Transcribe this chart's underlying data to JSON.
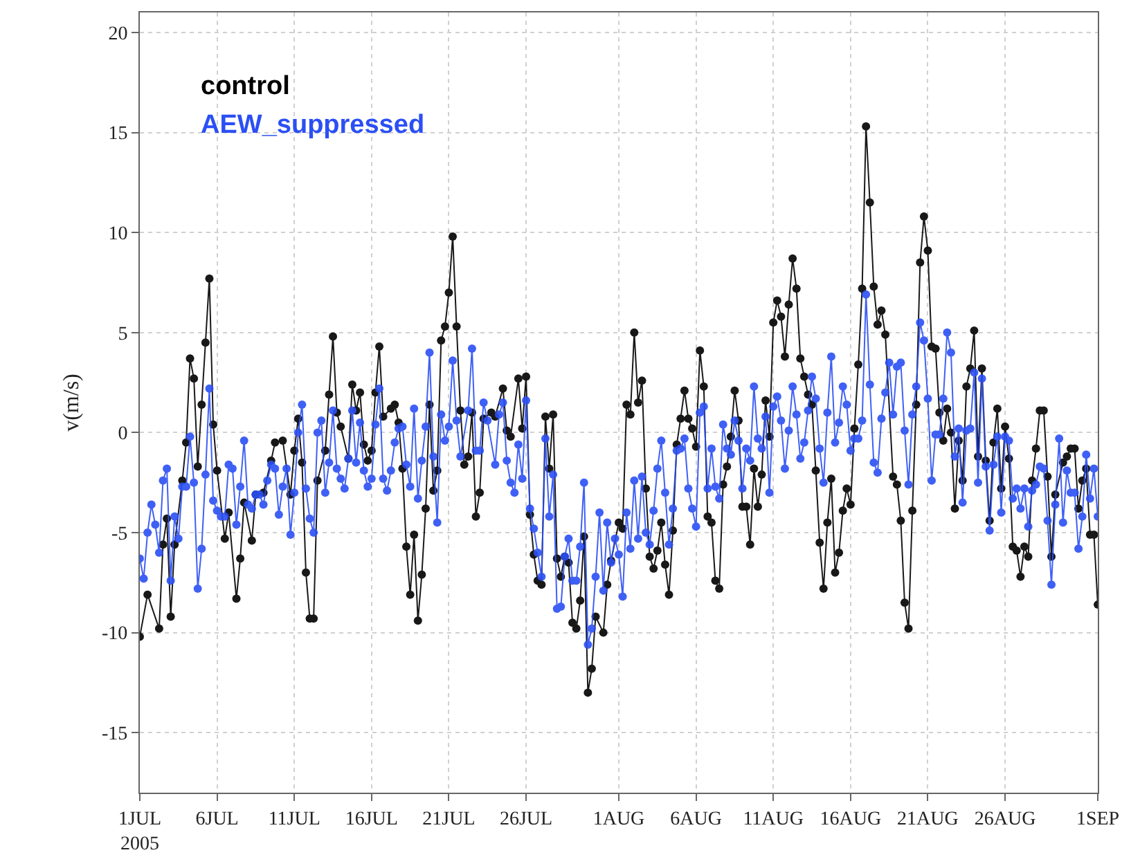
{
  "chart_data": {
    "type": "line",
    "ylabel": "v(m/s)",
    "marker": "circle",
    "line_style": "solid",
    "grid": true,
    "legend": "top left",
    "xlim": [
      "2005-07-01",
      "2005-09-01"
    ],
    "ylim": [
      -18,
      21
    ],
    "yticks": [
      -15,
      -10,
      -5,
      0,
      5,
      10,
      15,
      20
    ],
    "xticks": [
      {
        "value": "2005-07-01",
        "label": "1JUL\n2005"
      },
      {
        "value": "2005-07-06",
        "label": "6JUL"
      },
      {
        "value": "2005-07-11",
        "label": "11JUL"
      },
      {
        "value": "2005-07-16",
        "label": "16JUL"
      },
      {
        "value": "2005-07-21",
        "label": "21JUL"
      },
      {
        "value": "2005-07-26",
        "label": "26JUL"
      },
      {
        "value": "2005-08-01",
        "label": "1AUG"
      },
      {
        "value": "2005-08-06",
        "label": "6AUG"
      },
      {
        "value": "2005-08-11",
        "label": "11AUG"
      },
      {
        "value": "2005-08-16",
        "label": "16AUG"
      },
      {
        "value": "2005-08-21",
        "label": "21AUG"
      },
      {
        "value": "2005-08-26",
        "label": "26AUG"
      },
      {
        "value": "2005-09-01",
        "label": "1SEP"
      }
    ],
    "series": [
      {
        "name": "control",
        "color": "#000000",
        "x": [
          "2005-07-01T00:00",
          "2005-07-01T12:00",
          "2005-07-02T06:00",
          "2005-07-02T12:00",
          "2005-07-02T18:00",
          "2005-07-03T00:00",
          "2005-07-03T06:00",
          "2005-07-03T18:00",
          "2005-07-04T00:00",
          "2005-07-04T06:00",
          "2005-07-04T12:00",
          "2005-07-04T18:00",
          "2005-07-05T00:00",
          "2005-07-05T06:00",
          "2005-07-05T12:00",
          "2005-07-05T18:00",
          "2005-07-06T00:00",
          "2005-07-06T12:00",
          "2005-07-06T18:00",
          "2005-07-07T06:00",
          "2005-07-07T12:00",
          "2005-07-07T18:00",
          "2005-07-08T06:00",
          "2005-07-08T12:00",
          "2005-07-09T00:00",
          "2005-07-09T12:00",
          "2005-07-09T18:00",
          "2005-07-10T06:00",
          "2005-07-10T18:00",
          "2005-07-11T00:00",
          "2005-07-11T06:00",
          "2005-07-11T12:00",
          "2005-07-11T18:00",
          "2005-07-12T00:00",
          "2005-07-12T06:00",
          "2005-07-12T12:00",
          "2005-07-13T00:00",
          "2005-07-13T06:00",
          "2005-07-13T12:00",
          "2005-07-13T18:00",
          "2005-07-14T00:00",
          "2005-07-14T12:00",
          "2005-07-14T18:00",
          "2005-07-15T00:00",
          "2005-07-15T06:00",
          "2005-07-15T12:00",
          "2005-07-15T18:00",
          "2005-07-16T00:00",
          "2005-07-16T06:00",
          "2005-07-16T12:00",
          "2005-07-16T18:00",
          "2005-07-17T06:00",
          "2005-07-17T12:00",
          "2005-07-17T18:00",
          "2005-07-18T00:00",
          "2005-07-18T06:00",
          "2005-07-18T12:00",
          "2005-07-18T18:00",
          "2005-07-19T00:00",
          "2005-07-19T06:00",
          "2005-07-19T12:00",
          "2005-07-19T18:00",
          "2005-07-20T00:00",
          "2005-07-20T06:00",
          "2005-07-20T12:00",
          "2005-07-20T18:00",
          "2005-07-21T00:00",
          "2005-07-21T06:00",
          "2005-07-21T12:00",
          "2005-07-21T18:00",
          "2005-07-22T00:00",
          "2005-07-22T06:00",
          "2005-07-22T12:00",
          "2005-07-22T18:00",
          "2005-07-23T00:00",
          "2005-07-23T06:00",
          "2005-07-23T18:00",
          "2005-07-24T00:00",
          "2005-07-24T12:00",
          "2005-07-24T18:00",
          "2005-07-25T00:00",
          "2005-07-25T12:00",
          "2005-07-25T18:00",
          "2005-07-26T00:00",
          "2005-07-26T06:00",
          "2005-07-26T12:00",
          "2005-07-26T18:00",
          "2005-07-27T00:00",
          "2005-07-27T06:00",
          "2005-07-27T12:00",
          "2005-07-27T18:00",
          "2005-07-28T00:00",
          "2005-07-28T06:00",
          "2005-07-28T12:00",
          "2005-07-28T18:00",
          "2005-07-29T00:00",
          "2005-07-29T06:00",
          "2005-07-29T12:00",
          "2005-07-29T18:00",
          "2005-07-30T00:00",
          "2005-07-30T06:00",
          "2005-07-30T12:00",
          "2005-07-31T00:00",
          "2005-07-31T06:00",
          "2005-07-31T12:00",
          "2005-08-01T00:00",
          "2005-08-01T06:00",
          "2005-08-01T12:00",
          "2005-08-01T18:00",
          "2005-08-02T00:00",
          "2005-08-02T06:00",
          "2005-08-02T12:00",
          "2005-08-02T18:00",
          "2005-08-03T00:00",
          "2005-08-03T06:00",
          "2005-08-03T12:00",
          "2005-08-03T18:00",
          "2005-08-04T00:00",
          "2005-08-04T06:00",
          "2005-08-04T12:00",
          "2005-08-04T18:00",
          "2005-08-05T00:00",
          "2005-08-05T06:00",
          "2005-08-05T12:00",
          "2005-08-05T18:00",
          "2005-08-06T00:00",
          "2005-08-06T06:00",
          "2005-08-06T12:00",
          "2005-08-06T18:00",
          "2005-08-07T00:00",
          "2005-08-07T06:00",
          "2005-08-07T12:00",
          "2005-08-07T18:00",
          "2005-08-08T00:00",
          "2005-08-08T06:00",
          "2005-08-08T12:00",
          "2005-08-08T18:00",
          "2005-08-09T00:00",
          "2005-08-09T06:00",
          "2005-08-09T12:00",
          "2005-08-09T18:00",
          "2005-08-10T00:00",
          "2005-08-10T06:00",
          "2005-08-10T12:00",
          "2005-08-10T18:00",
          "2005-08-11T00:00",
          "2005-08-11T06:00",
          "2005-08-11T12:00",
          "2005-08-11T18:00",
          "2005-08-12T00:00",
          "2005-08-12T06:00",
          "2005-08-12T12:00",
          "2005-08-12T18:00",
          "2005-08-13T00:00",
          "2005-08-13T06:00",
          "2005-08-13T12:00",
          "2005-08-13T18:00",
          "2005-08-14T00:00",
          "2005-08-14T06:00",
          "2005-08-14T12:00",
          "2005-08-14T18:00",
          "2005-08-15T00:00",
          "2005-08-15T06:00",
          "2005-08-15T12:00",
          "2005-08-15T18:00",
          "2005-08-16T00:00",
          "2005-08-16T06:00",
          "2005-08-16T12:00",
          "2005-08-16T18:00",
          "2005-08-17T00:00",
          "2005-08-17T06:00",
          "2005-08-17T12:00",
          "2005-08-17T18:00",
          "2005-08-18T00:00",
          "2005-08-18T06:00",
          "2005-08-18T18:00",
          "2005-08-19T00:00",
          "2005-08-19T06:00",
          "2005-08-19T12:00",
          "2005-08-19T18:00",
          "2005-08-20T00:00",
          "2005-08-20T06:00",
          "2005-08-20T12:00",
          "2005-08-20T18:00",
          "2005-08-21T00:00",
          "2005-08-21T06:00",
          "2005-08-21T12:00",
          "2005-08-21T18:00",
          "2005-08-22T00:00",
          "2005-08-22T06:00",
          "2005-08-22T12:00",
          "2005-08-22T18:00",
          "2005-08-23T00:00",
          "2005-08-23T06:00",
          "2005-08-23T12:00",
          "2005-08-23T18:00",
          "2005-08-24T00:00",
          "2005-08-24T06:00",
          "2005-08-24T12:00",
          "2005-08-24T18:00",
          "2005-08-25T00:00",
          "2005-08-25T06:00",
          "2005-08-25T12:00",
          "2005-08-25T18:00",
          "2005-08-26T00:00",
          "2005-08-26T06:00",
          "2005-08-26T12:00",
          "2005-08-26T18:00",
          "2005-08-27T00:00",
          "2005-08-27T06:00",
          "2005-08-27T12:00",
          "2005-08-27T18:00",
          "2005-08-28T00:00",
          "2005-08-28T06:00",
          "2005-08-28T12:00",
          "2005-08-28T18:00",
          "2005-08-29T00:00",
          "2005-08-29T06:00",
          "2005-08-29T18:00",
          "2005-08-30T00:00",
          "2005-08-30T06:00",
          "2005-08-30T12:00",
          "2005-08-30T18:00",
          "2005-08-31T00:00",
          "2005-08-31T06:00",
          "2005-08-31T12:00",
          "2005-08-31T18:00",
          "2005-09-01T00:00"
        ],
        "values": [
          -10.2,
          -8.1,
          -9.8,
          -5.6,
          -4.3,
          -9.2,
          -5.6,
          -2.4,
          -0.5,
          3.7,
          2.7,
          -1.7,
          1.4,
          4.5,
          7.7,
          0.4,
          -1.9,
          -5.3,
          -4.0,
          -8.3,
          -6.3,
          -3.5,
          -5.4,
          -3.1,
          -3.0,
          -1.4,
          -0.5,
          -0.4,
          -3.1,
          -0.9,
          0.7,
          -1.5,
          -7.0,
          -9.3,
          -9.3,
          -2.4,
          -0.9,
          1.9,
          4.8,
          1.0,
          0.3,
          -1.3,
          2.4,
          1.1,
          2.0,
          -0.6,
          -1.4,
          -0.9,
          2.0,
          4.3,
          0.8,
          1.2,
          1.4,
          0.5,
          -1.8,
          -5.7,
          -8.1,
          -5.1,
          -9.4,
          -7.1,
          -3.8,
          1.4,
          -2.9,
          -1.9,
          4.6,
          5.3,
          7.0,
          9.8,
          5.3,
          1.1,
          -1.6,
          -1.2,
          1.0,
          -4.2,
          -3.0,
          0.7,
          1.0,
          0.8,
          2.2,
          0.1,
          -0.2,
          2.7,
          0.2,
          2.8,
          -4.1,
          -6.1,
          -7.4,
          -7.6,
          0.8,
          -1.8,
          0.9,
          -6.3,
          -7.2,
          -6.2,
          -6.5,
          -9.5,
          -9.8,
          -8.4,
          -5.2,
          -13.0,
          -11.8,
          -9.2,
          -10.0,
          -7.6,
          -6.4,
          -4.5,
          -4.8,
          1.4,
          0.9,
          5.0,
          1.5,
          2.6,
          -2.8,
          -6.2,
          -6.8,
          -5.9,
          -4.5,
          -6.6,
          -8.1,
          -4.9,
          -0.6,
          0.7,
          2.1,
          0.7,
          0.2,
          -0.7,
          4.1,
          2.3,
          -4.2,
          -4.5,
          -7.4,
          -7.8,
          -2.6,
          -1.7,
          -0.2,
          2.1,
          0.6,
          -3.7,
          -3.7,
          -5.6,
          -1.8,
          -3.7,
          -2.1,
          1.6,
          -0.2,
          5.5,
          6.6,
          5.8,
          3.8,
          6.4,
          8.7,
          7.2,
          3.7,
          2.8,
          1.9,
          1.4,
          -1.9,
          -5.5,
          -7.8,
          -4.5,
          -2.3,
          -7.0,
          -6.0,
          -3.9,
          -2.8,
          -3.6,
          0.2,
          3.4,
          7.2,
          15.3,
          11.5,
          7.3,
          5.4,
          6.1,
          4.9,
          -2.2,
          -2.6,
          -4.4,
          -8.5,
          -9.8,
          -3.9,
          1.4,
          8.5,
          10.8,
          9.1,
          4.3,
          4.2,
          1.0,
          -0.4,
          1.2,
          0.0,
          -3.8,
          -0.4,
          -2.4,
          2.3,
          3.2,
          5.1,
          -1.2,
          3.2,
          -1.4,
          -4.4,
          -0.5,
          1.2,
          -2.8,
          0.3,
          -1.3,
          -5.7,
          -5.9,
          -7.2,
          -5.7,
          -6.2,
          -2.4,
          -0.8,
          1.1,
          1.1,
          -2.2,
          -6.2,
          -3.1,
          -1.5,
          -1.2,
          -0.8,
          -0.8,
          -3.8,
          -2.4,
          -1.8,
          -5.1,
          -5.1,
          -8.6
        ]
      },
      {
        "name": "AEW_suppressed",
        "color": "#2b4ff5",
        "x": [
          "2005-07-01T00:00",
          "2005-07-01T06:00",
          "2005-07-01T12:00",
          "2005-07-01T18:00",
          "2005-07-02T00:00",
          "2005-07-02T06:00",
          "2005-07-02T12:00",
          "2005-07-02T18:00",
          "2005-07-03T00:00",
          "2005-07-03T06:00",
          "2005-07-03T12:00",
          "2005-07-03T18:00",
          "2005-07-04T00:00",
          "2005-07-04T06:00",
          "2005-07-04T12:00",
          "2005-07-04T18:00",
          "2005-07-05T00:00",
          "2005-07-05T06:00",
          "2005-07-05T12:00",
          "2005-07-05T18:00",
          "2005-07-06T00:00",
          "2005-07-06T06:00",
          "2005-07-06T12:00",
          "2005-07-06T18:00",
          "2005-07-07T00:00",
          "2005-07-07T06:00",
          "2005-07-07T12:00",
          "2005-07-07T18:00",
          "2005-07-08T00:00",
          "2005-07-08T06:00",
          "2005-07-08T12:00",
          "2005-07-08T18:00",
          "2005-07-09T00:00",
          "2005-07-09T06:00",
          "2005-07-09T12:00",
          "2005-07-09T18:00",
          "2005-07-10T00:00",
          "2005-07-10T06:00",
          "2005-07-10T12:00",
          "2005-07-10T18:00",
          "2005-07-11T00:00",
          "2005-07-11T06:00",
          "2005-07-11T12:00",
          "2005-07-11T18:00",
          "2005-07-12T00:00",
          "2005-07-12T06:00",
          "2005-07-12T12:00",
          "2005-07-12T18:00",
          "2005-07-13T00:00",
          "2005-07-13T06:00",
          "2005-07-13T12:00",
          "2005-07-13T18:00",
          "2005-07-14T00:00",
          "2005-07-14T06:00",
          "2005-07-14T12:00",
          "2005-07-14T18:00",
          "2005-07-15T00:00",
          "2005-07-15T06:00",
          "2005-07-15T12:00",
          "2005-07-15T18:00",
          "2005-07-16T00:00",
          "2005-07-16T06:00",
          "2005-07-16T12:00",
          "2005-07-16T18:00",
          "2005-07-17T00:00",
          "2005-07-17T06:00",
          "2005-07-17T12:00",
          "2005-07-17T18:00",
          "2005-07-18T00:00",
          "2005-07-18T06:00",
          "2005-07-18T12:00",
          "2005-07-18T18:00",
          "2005-07-19T00:00",
          "2005-07-19T06:00",
          "2005-07-19T12:00",
          "2005-07-19T18:00",
          "2005-07-20T00:00",
          "2005-07-20T06:00",
          "2005-07-20T12:00",
          "2005-07-20T18:00",
          "2005-07-21T00:00",
          "2005-07-21T06:00",
          "2005-07-21T12:00",
          "2005-07-21T18:00",
          "2005-07-22T06:00",
          "2005-07-22T12:00",
          "2005-07-22T18:00",
          "2005-07-23T00:00",
          "2005-07-23T06:00",
          "2005-07-23T12:00",
          "2005-07-24T00:00",
          "2005-07-24T06:00",
          "2005-07-24T12:00",
          "2005-07-24T18:00",
          "2005-07-25T00:00",
          "2005-07-25T06:00",
          "2005-07-25T12:00",
          "2005-07-25T18:00",
          "2005-07-26T00:00",
          "2005-07-26T06:00",
          "2005-07-26T12:00",
          "2005-07-26T18:00",
          "2005-07-27T00:00",
          "2005-07-27T06:00",
          "2005-07-27T12:00",
          "2005-07-27T18:00",
          "2005-07-28T00:00",
          "2005-07-28T06:00",
          "2005-07-28T12:00",
          "2005-07-28T18:00",
          "2005-07-29T00:00",
          "2005-07-29T06:00",
          "2005-07-29T12:00",
          "2005-07-29T18:00",
          "2005-07-30T00:00",
          "2005-07-30T06:00",
          "2005-07-30T12:00",
          "2005-07-30T18:00",
          "2005-07-31T00:00",
          "2005-07-31T06:00",
          "2005-07-31T12:00",
          "2005-07-31T18:00",
          "2005-08-01T00:00",
          "2005-08-01T06:00",
          "2005-08-01T12:00",
          "2005-08-01T18:00",
          "2005-08-02T00:00",
          "2005-08-02T06:00",
          "2005-08-02T12:00",
          "2005-08-02T18:00",
          "2005-08-03T00:00",
          "2005-08-03T06:00",
          "2005-08-03T12:00",
          "2005-08-03T18:00",
          "2005-08-04T00:00",
          "2005-08-04T06:00",
          "2005-08-04T12:00",
          "2005-08-04T18:00",
          "2005-08-05T00:00",
          "2005-08-05T06:00",
          "2005-08-05T12:00",
          "2005-08-05T18:00",
          "2005-08-06T00:00",
          "2005-08-06T06:00",
          "2005-08-06T12:00",
          "2005-08-06T18:00",
          "2005-08-07T00:00",
          "2005-08-07T06:00",
          "2005-08-07T12:00",
          "2005-08-07T18:00",
          "2005-08-08T00:00",
          "2005-08-08T06:00",
          "2005-08-08T12:00",
          "2005-08-08T18:00",
          "2005-08-09T00:00",
          "2005-08-09T06:00",
          "2005-08-09T12:00",
          "2005-08-09T18:00",
          "2005-08-10T00:00",
          "2005-08-10T06:00",
          "2005-08-10T12:00",
          "2005-08-10T18:00",
          "2005-08-11T00:00",
          "2005-08-11T06:00",
          "2005-08-11T12:00",
          "2005-08-11T18:00",
          "2005-08-12T00:00",
          "2005-08-12T06:00",
          "2005-08-12T12:00",
          "2005-08-12T18:00",
          "2005-08-13T00:00",
          "2005-08-13T06:00",
          "2005-08-13T12:00",
          "2005-08-13T18:00",
          "2005-08-14T00:00",
          "2005-08-14T06:00",
          "2005-08-14T12:00",
          "2005-08-14T18:00",
          "2005-08-15T00:00",
          "2005-08-15T06:00",
          "2005-08-15T12:00",
          "2005-08-15T18:00",
          "2005-08-16T00:00",
          "2005-08-16T06:00",
          "2005-08-16T12:00",
          "2005-08-16T18:00",
          "2005-08-17T00:00",
          "2005-08-17T06:00",
          "2005-08-17T12:00",
          "2005-08-17T18:00",
          "2005-08-18T00:00",
          "2005-08-18T06:00",
          "2005-08-18T12:00",
          "2005-08-18T18:00",
          "2005-08-19T00:00",
          "2005-08-19T06:00",
          "2005-08-19T12:00",
          "2005-08-19T18:00",
          "2005-08-20T00:00",
          "2005-08-20T06:00",
          "2005-08-20T12:00",
          "2005-08-20T18:00",
          "2005-08-21T00:00",
          "2005-08-21T06:00",
          "2005-08-21T12:00",
          "2005-08-21T18:00",
          "2005-08-22T00:00",
          "2005-08-22T06:00",
          "2005-08-22T12:00",
          "2005-08-22T18:00",
          "2005-08-23T00:00",
          "2005-08-23T06:00",
          "2005-08-23T12:00",
          "2005-08-23T18:00",
          "2005-08-24T00:00",
          "2005-08-24T06:00",
          "2005-08-24T12:00",
          "2005-08-24T18:00",
          "2005-08-25T00:00",
          "2005-08-25T06:00",
          "2005-08-25T12:00",
          "2005-08-25T18:00",
          "2005-08-26T00:00",
          "2005-08-26T06:00",
          "2005-08-26T12:00",
          "2005-08-26T18:00",
          "2005-08-27T00:00",
          "2005-08-27T06:00",
          "2005-08-27T12:00",
          "2005-08-27T18:00",
          "2005-08-28T00:00",
          "2005-08-28T06:00",
          "2005-08-28T12:00",
          "2005-08-28T18:00",
          "2005-08-29T00:00",
          "2005-08-29T06:00",
          "2005-08-29T12:00",
          "2005-08-29T18:00",
          "2005-08-30T00:00",
          "2005-08-30T06:00",
          "2005-08-30T12:00",
          "2005-08-30T18:00",
          "2005-08-31T00:00",
          "2005-08-31T06:00",
          "2005-08-31T12:00",
          "2005-08-31T18:00",
          "2005-09-01T00:00"
        ],
        "values": [
          -6.3,
          -7.3,
          -5.0,
          -3.6,
          -4.6,
          -6.0,
          -2.4,
          -1.8,
          -7.4,
          -4.2,
          -5.3,
          -2.7,
          -2.7,
          -0.2,
          -2.5,
          -7.8,
          -5.8,
          -2.1,
          2.2,
          -3.4,
          -3.9,
          -4.2,
          -4.2,
          -1.6,
          -1.8,
          -4.6,
          -2.7,
          -0.4,
          -3.6,
          -3.8,
          -3.1,
          -3.1,
          -3.6,
          -2.4,
          -1.6,
          -1.8,
          -4.1,
          -2.7,
          -1.8,
          -5.1,
          -3.0,
          0.0,
          1.4,
          -2.8,
          -4.3,
          -5.0,
          0.0,
          0.6,
          -3.0,
          -1.5,
          1.1,
          -1.8,
          -2.3,
          -2.8,
          -1.3,
          1.1,
          -1.5,
          0.5,
          -1.9,
          -2.7,
          -2.3,
          0.4,
          2.2,
          -2.3,
          -2.9,
          -1.9,
          -0.5,
          0.2,
          0.3,
          -1.6,
          -2.7,
          1.2,
          -3.3,
          -1.4,
          0.3,
          4.0,
          -1.2,
          -4.5,
          0.9,
          -0.4,
          0.3,
          3.6,
          0.6,
          -1.2,
          1.1,
          4.2,
          -0.9,
          -0.9,
          1.5,
          0.6,
          -1.6,
          0.9,
          1.5,
          -1.4,
          -2.5,
          -3.0,
          -0.6,
          -2.3,
          1.6,
          -3.8,
          -4.8,
          -6.0,
          -7.2,
          -0.3,
          -4.2,
          -2.1,
          -8.8,
          -8.7,
          -6.2,
          -5.3,
          -7.4,
          -7.4,
          -5.7,
          -2.5,
          -10.6,
          -9.8,
          -7.2,
          -4.0,
          -7.9,
          -4.5,
          -6.5,
          -5.3,
          -6.1,
          -8.2,
          -4.0,
          -5.8,
          -2.4,
          -5.3,
          -2.2,
          -5.0,
          -5.6,
          -3.9,
          -1.8,
          -0.4,
          -3.0,
          -5.6,
          -3.8,
          -0.9,
          -0.8,
          -0.3,
          -2.8,
          -3.8,
          -4.7,
          1.0,
          1.3,
          -2.8,
          -0.8,
          -2.7,
          -3.3,
          0.4,
          -0.8,
          -1.1,
          0.6,
          -0.4,
          -2.8,
          -0.8,
          -1.4,
          2.3,
          -0.3,
          -0.8,
          0.8,
          -3.0,
          1.3,
          1.8,
          0.6,
          -1.8,
          0.1,
          2.3,
          0.9,
          -1.3,
          -0.5,
          1.1,
          2.8,
          1.7,
          -0.8,
          -2.5,
          1.0,
          3.8,
          -0.5,
          0.5,
          2.3,
          1.4,
          -0.9,
          -0.3,
          -0.3,
          0.6,
          6.9,
          2.4,
          -1.5,
          -2.0,
          0.7,
          2.0,
          3.5,
          0.9,
          3.3,
          3.5,
          0.1,
          -2.6,
          0.9,
          2.3,
          5.5,
          4.6,
          1.7,
          -2.4,
          -0.1,
          -0.1,
          1.7,
          5.0,
          4.0,
          -1.2,
          0.2,
          -3.5,
          0.1,
          0.2,
          3.0,
          -2.5,
          2.7,
          -1.7,
          -4.9,
          -1.6,
          -0.2,
          -4.0,
          -0.2,
          -0.4,
          -3.3,
          -2.8,
          -3.8,
          -2.8,
          -4.7,
          -2.9,
          -2.6,
          -1.7,
          -1.8,
          -4.4,
          -7.6,
          -3.6,
          -0.3,
          -4.5,
          -1.9,
          -3.0,
          -3.0,
          -5.8,
          -4.2,
          -1.1,
          -3.3,
          -1.8,
          -4.2
        ]
      }
    ]
  }
}
